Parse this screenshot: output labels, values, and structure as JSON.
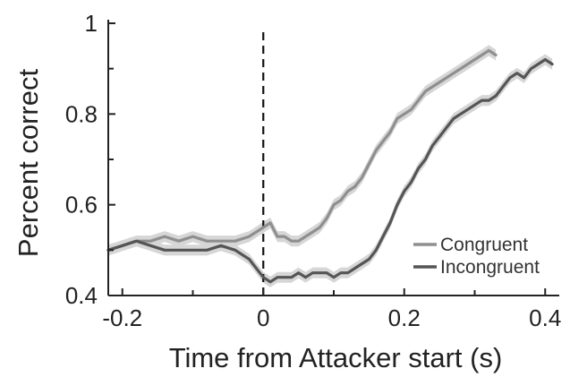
{
  "chart_data": {
    "type": "line",
    "xlabel": "Time from Attacker start (s)",
    "ylabel": "Percent correct",
    "xlim": [
      -0.22,
      0.42
    ],
    "ylim": [
      0.4,
      1.0
    ],
    "x_ticks": [
      -0.2,
      0,
      0.2,
      0.4
    ],
    "x_tick_labels": [
      "-0.2",
      "0",
      "0.2",
      "0.4"
    ],
    "y_ticks": [
      0.4,
      0.6,
      0.8,
      1.0
    ],
    "y_tick_labels": [
      "0.4",
      "0.6",
      "0.8",
      "1"
    ],
    "y_minor_ticks": [
      0.5,
      0.7,
      0.9
    ],
    "x_minor_ticks": [
      -0.1,
      0.1,
      0.3
    ],
    "vline": {
      "x": 0,
      "style": "dashed"
    },
    "legend": {
      "placement": "bottom-right"
    },
    "grid": false,
    "series": [
      {
        "name": "Congruent",
        "color": "#8f8f8f",
        "band_color": "#d6d6d6",
        "band_halfwidth": 0.012,
        "x": [
          -0.22,
          -0.2,
          -0.18,
          -0.16,
          -0.14,
          -0.12,
          -0.1,
          -0.08,
          -0.06,
          -0.04,
          -0.02,
          0.0,
          0.01,
          0.02,
          0.03,
          0.04,
          0.05,
          0.06,
          0.07,
          0.08,
          0.09,
          0.1,
          0.11,
          0.12,
          0.13,
          0.14,
          0.15,
          0.16,
          0.17,
          0.18,
          0.19,
          0.2,
          0.21,
          0.22,
          0.23,
          0.24,
          0.25,
          0.26,
          0.27,
          0.28,
          0.29,
          0.3,
          0.31,
          0.32,
          0.33
        ],
        "y": [
          0.5,
          0.51,
          0.52,
          0.52,
          0.53,
          0.52,
          0.53,
          0.52,
          0.52,
          0.52,
          0.53,
          0.55,
          0.56,
          0.53,
          0.53,
          0.52,
          0.52,
          0.53,
          0.54,
          0.55,
          0.57,
          0.6,
          0.61,
          0.63,
          0.64,
          0.66,
          0.69,
          0.72,
          0.74,
          0.76,
          0.79,
          0.8,
          0.81,
          0.83,
          0.85,
          0.86,
          0.87,
          0.88,
          0.89,
          0.9,
          0.91,
          0.92,
          0.93,
          0.94,
          0.93
        ]
      },
      {
        "name": "Incongruent",
        "color": "#555555",
        "band_color": "#d6d6d6",
        "band_halfwidth": 0.012,
        "x": [
          -0.22,
          -0.2,
          -0.18,
          -0.16,
          -0.14,
          -0.12,
          -0.1,
          -0.08,
          -0.06,
          -0.04,
          -0.02,
          0.0,
          0.01,
          0.02,
          0.03,
          0.04,
          0.05,
          0.06,
          0.07,
          0.08,
          0.09,
          0.1,
          0.11,
          0.12,
          0.13,
          0.14,
          0.15,
          0.16,
          0.17,
          0.18,
          0.19,
          0.2,
          0.21,
          0.22,
          0.23,
          0.24,
          0.25,
          0.26,
          0.27,
          0.28,
          0.29,
          0.3,
          0.31,
          0.32,
          0.33,
          0.34,
          0.35,
          0.36,
          0.37,
          0.38,
          0.39,
          0.4,
          0.41
        ],
        "y": [
          0.5,
          0.51,
          0.52,
          0.51,
          0.5,
          0.5,
          0.5,
          0.5,
          0.51,
          0.5,
          0.48,
          0.44,
          0.43,
          0.44,
          0.44,
          0.44,
          0.45,
          0.44,
          0.45,
          0.45,
          0.45,
          0.44,
          0.45,
          0.45,
          0.46,
          0.47,
          0.48,
          0.5,
          0.53,
          0.56,
          0.6,
          0.63,
          0.65,
          0.68,
          0.7,
          0.73,
          0.75,
          0.77,
          0.79,
          0.8,
          0.81,
          0.82,
          0.83,
          0.83,
          0.84,
          0.86,
          0.88,
          0.89,
          0.88,
          0.9,
          0.91,
          0.92,
          0.91
        ]
      }
    ]
  }
}
